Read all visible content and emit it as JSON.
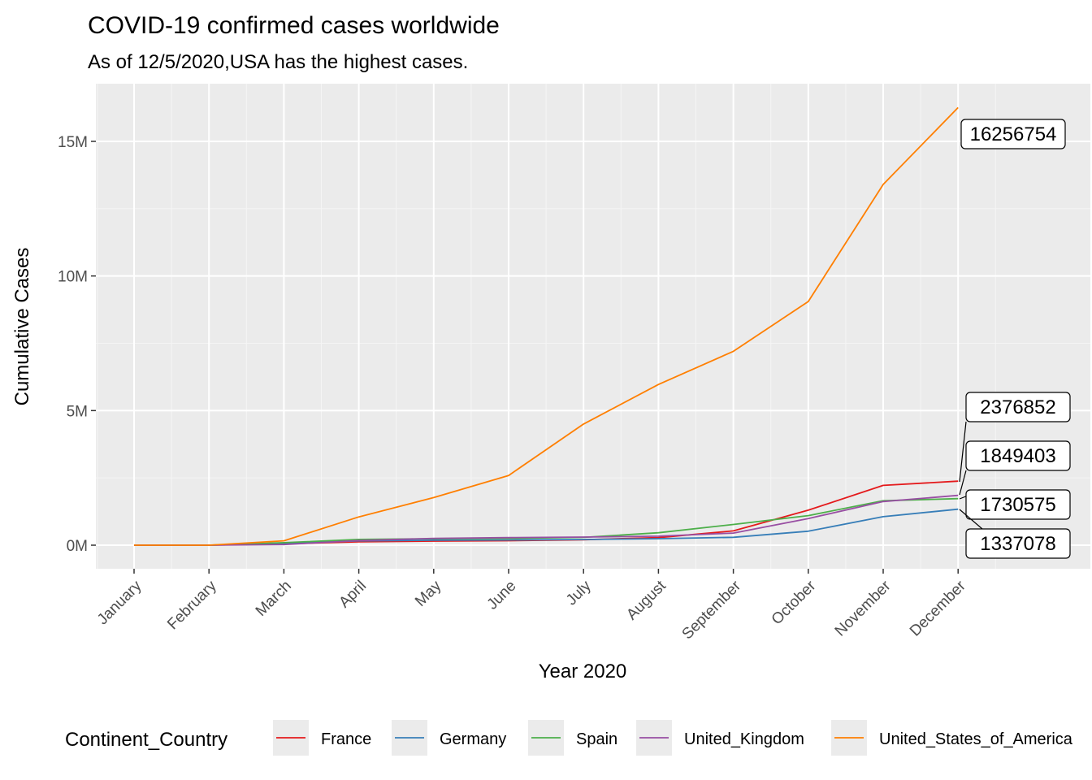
{
  "chart_data": {
    "type": "line",
    "title": "COVID-19 confirmed cases worldwide",
    "subtitle": "As of 12/5/2020,USA has the highest cases.",
    "xlabel": "Year 2020",
    "ylabel": "Cumulative Cases",
    "categories": [
      "January",
      "February",
      "March",
      "April",
      "May",
      "June",
      "July",
      "August",
      "September",
      "October",
      "November",
      "December"
    ],
    "y_ticks": [
      0,
      5000000,
      10000000,
      15000000
    ],
    "y_tick_labels": [
      "0M",
      "5M",
      "10M",
      "15M"
    ],
    "ylim": [
      -900000,
      17000000
    ],
    "grid": true,
    "legend": {
      "title": "Continent_Country",
      "position": "bottom"
    },
    "series": [
      {
        "name": "France",
        "color": "#E41A1C",
        "values": [
          0,
          100,
          52000,
          128000,
          151000,
          165000,
          202000,
          282000,
          530000,
          1300000,
          2220000,
          2376852
        ]
      },
      {
        "name": "Germany",
        "color": "#377EB8",
        "values": [
          0,
          16,
          72000,
          160000,
          183000,
          194000,
          210000,
          242000,
          292000,
          520000,
          1060000,
          1337078
        ]
      },
      {
        "name": "Spain",
        "color": "#4DAF4A",
        "values": [
          0,
          45,
          95000,
          215000,
          239000,
          249000,
          290000,
          462000,
          770000,
          1100000,
          1650000,
          1730575
        ]
      },
      {
        "name": "United_Kingdom",
        "color": "#984EA3",
        "values": [
          0,
          23,
          25000,
          172000,
          255000,
          282000,
          302000,
          335000,
          450000,
          990000,
          1620000,
          1849403
        ]
      },
      {
        "name": "United_States_of_America",
        "color": "#FF7F00",
        "values": [
          7,
          30,
          163000,
          1050000,
          1770000,
          2590000,
          4500000,
          5970000,
          7200000,
          9050000,
          13400000,
          16256754
        ]
      }
    ],
    "end_labels": [
      "16256754",
      "2376852",
      "1849403",
      "1730575",
      "1337078"
    ]
  }
}
